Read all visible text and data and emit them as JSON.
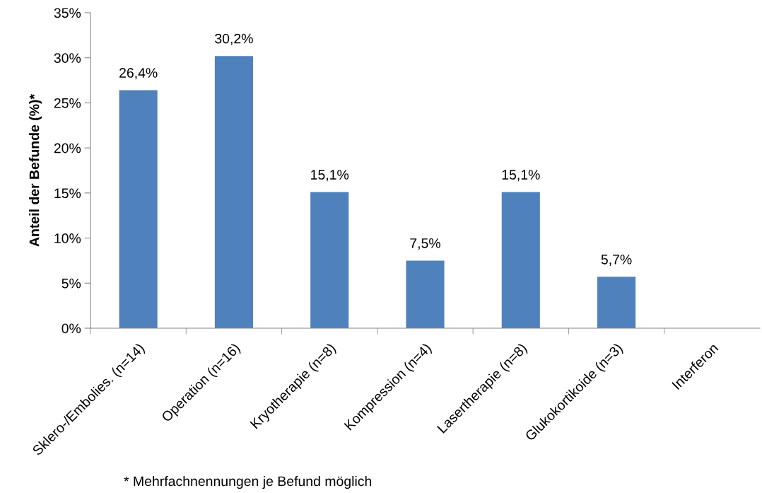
{
  "chart_data": {
    "type": "bar",
    "categories": [
      "Sklero-/Embolies. (n=14)",
      "Operation (n=16)",
      "Kryotherapie (n=8)",
      "Kompression (n=4)",
      "Lasertherapie (n=8)",
      "Glukokortikoide (n=3)",
      "Interferon"
    ],
    "values": [
      26.4,
      30.2,
      15.1,
      7.5,
      15.1,
      5.7,
      0
    ],
    "value_labels": [
      "26,4%",
      "30,2%",
      "15,1%",
      "7,5%",
      "15,1%",
      "5,7%",
      null
    ],
    "color": "#4f81bd",
    "ylabel": "Anteil der Befunde (%)*",
    "ylim": [
      0,
      35
    ],
    "yticks": [
      {
        "value": 0,
        "label": "0%"
      },
      {
        "value": 5,
        "label": "5%"
      },
      {
        "value": 10,
        "label": "10%"
      },
      {
        "value": 15,
        "label": "15%"
      },
      {
        "value": 20,
        "label": "20%"
      },
      {
        "value": 25,
        "label": "25%"
      },
      {
        "value": 30,
        "label": "30%"
      },
      {
        "value": 35,
        "label": "35%"
      }
    ],
    "grid": false,
    "legend": false,
    "annotations": [
      "* Mehrfachnennungen je Befund möglich"
    ]
  }
}
